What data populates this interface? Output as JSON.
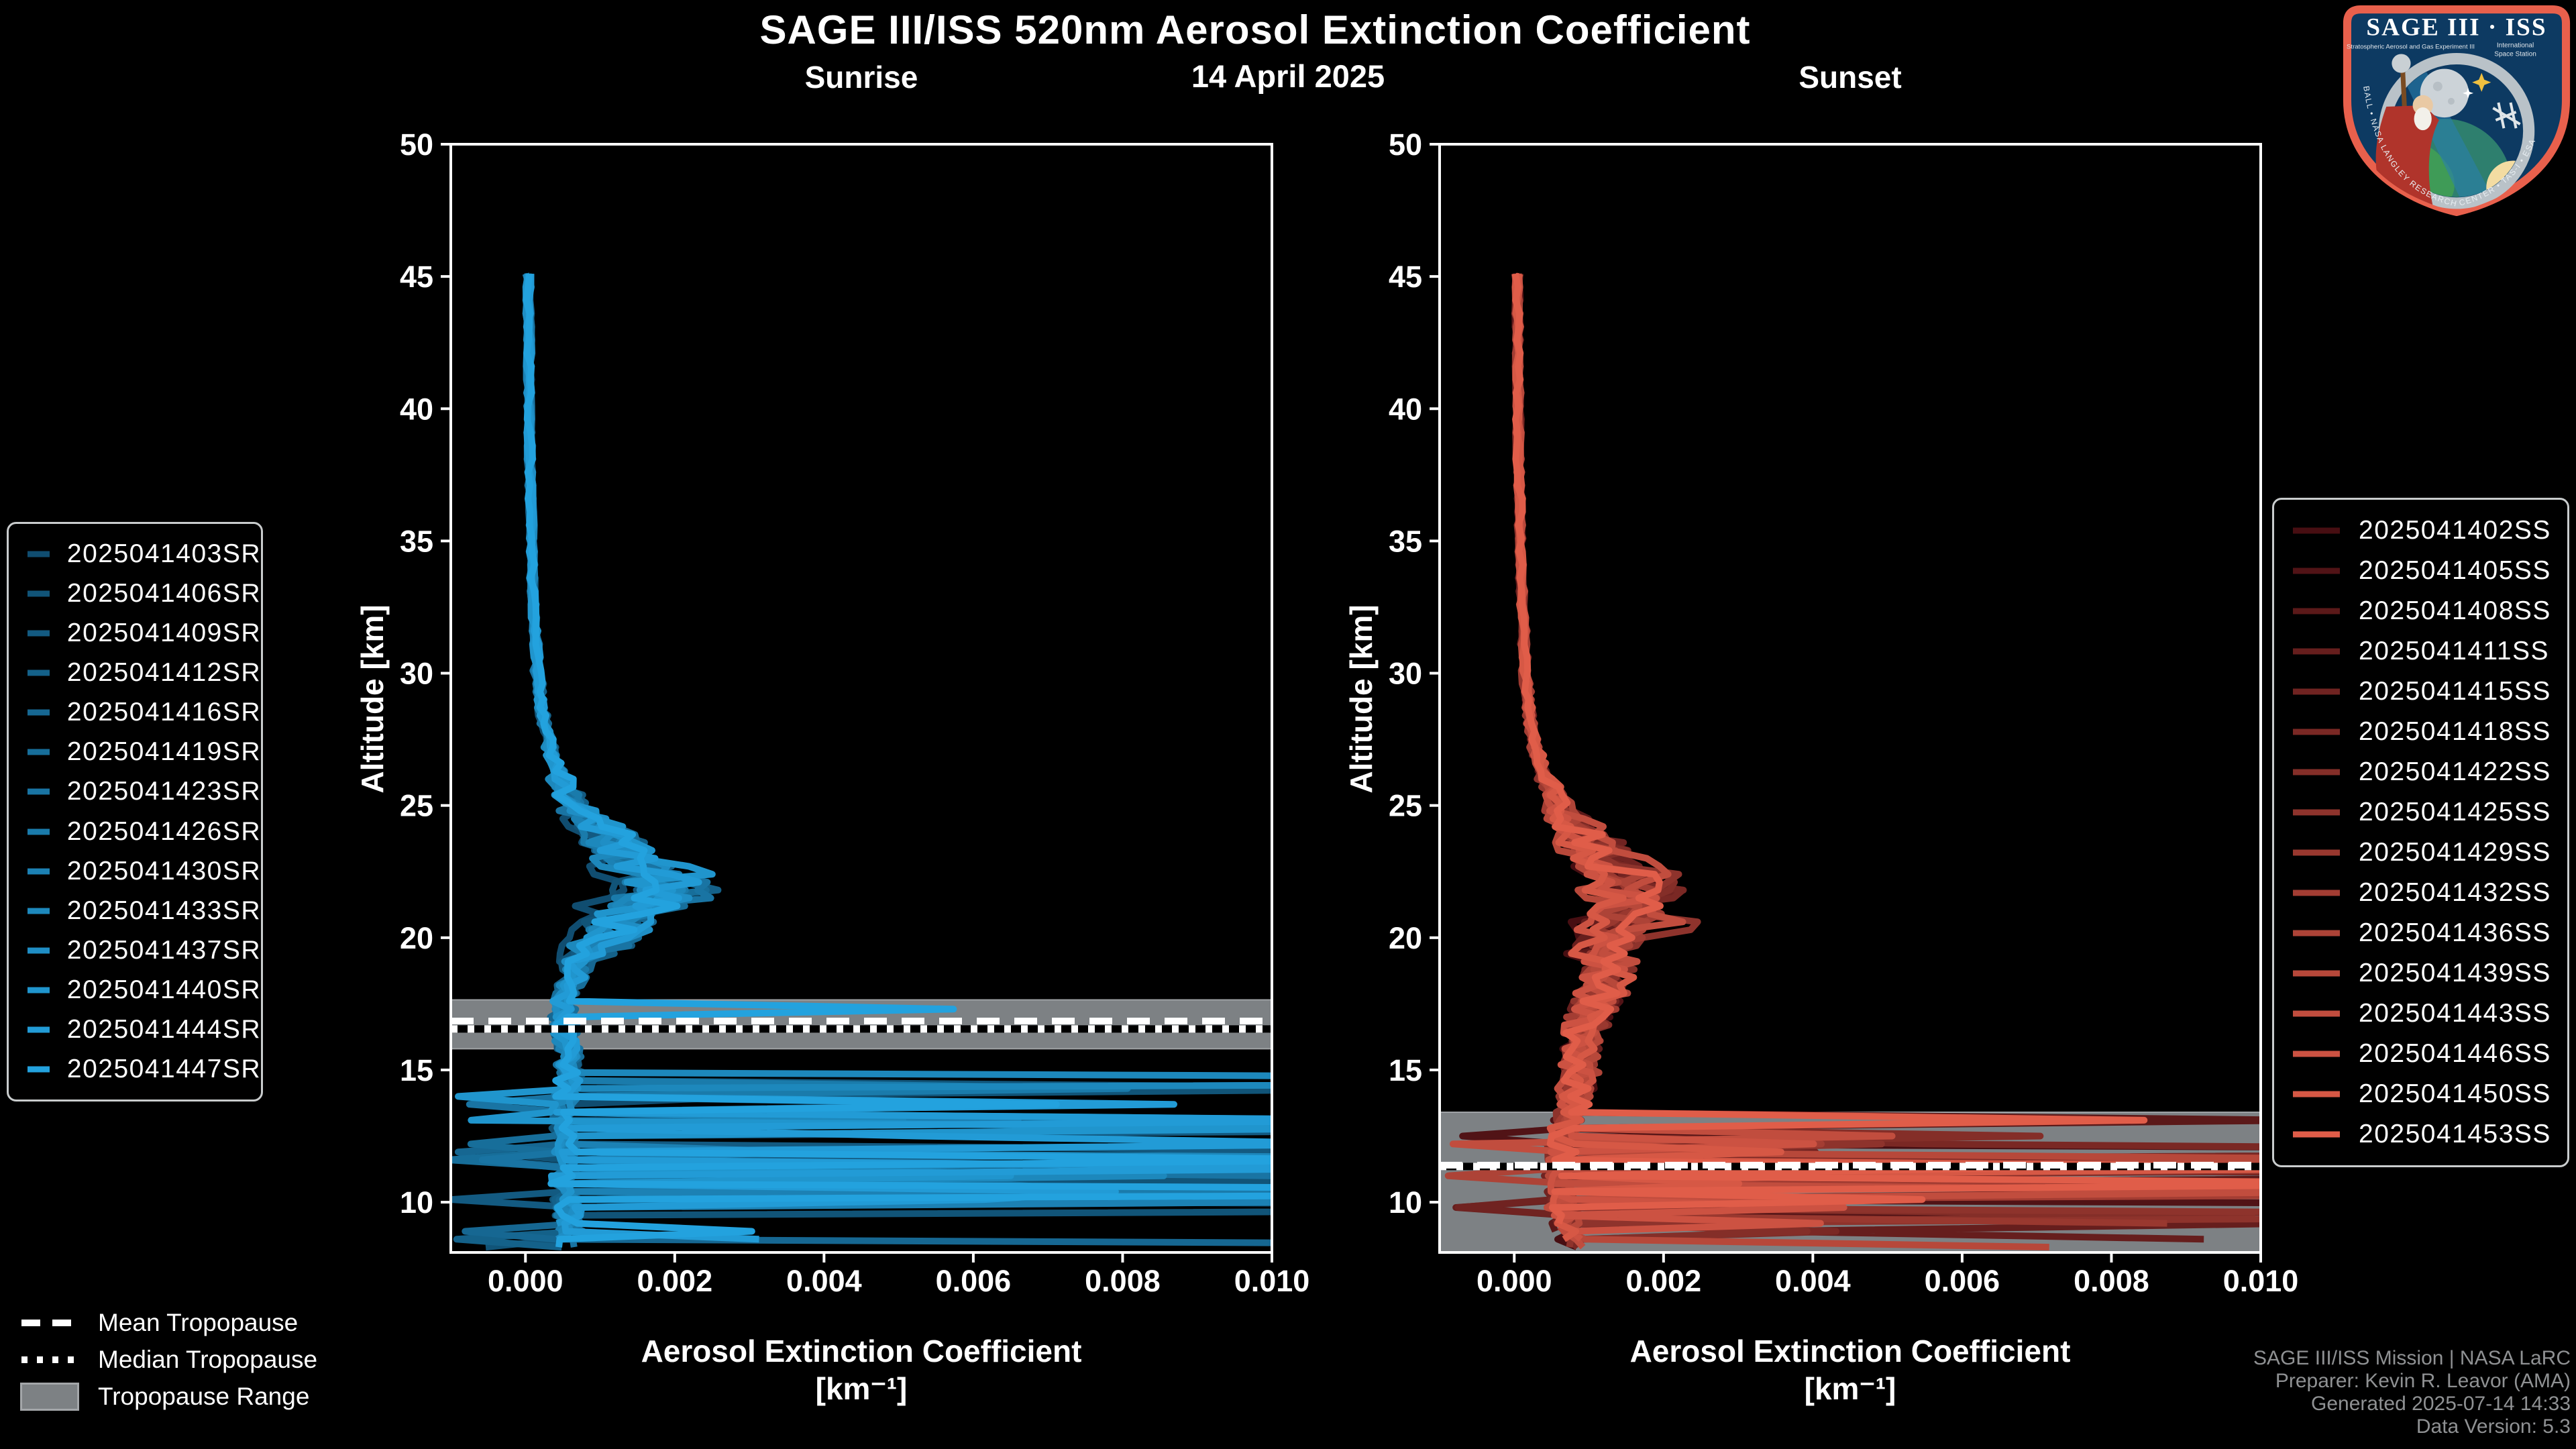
{
  "header": {
    "title": "SAGE III/ISS 520nm Aerosol Extinction Coefficient",
    "date": "14 April 2025"
  },
  "logo": {
    "name": "SAGE III · ISS",
    "sub_left": "Stratospheric Aerosol and Gas Experiment III",
    "sub_right1": "International",
    "sub_right2": "Space Station",
    "ring_text": "BALL • NASA LANGLEY RESEARCH CENTER • TAS-I • ESA",
    "border_color": "#e8604c",
    "field_color": "#0d3a62"
  },
  "tropopause_legend": {
    "mean_label": "Mean Tropopause",
    "median_label": "Median Tropopause",
    "range_label": "Tropopause Range",
    "range_color": "#7d8184"
  },
  "footer": {
    "lines": [
      "SAGE III/ISS Mission | NASA LaRC",
      "Preparer: Kevin R. Leavor (AMA)",
      "Generated 2025-07-14 14:33",
      "Data Version: 5.3"
    ]
  },
  "chart_data": {
    "type": "line",
    "title": "SAGE III/ISS 520nm Aerosol Extinction Coefficient",
    "subtitle": "14 April 2025",
    "xlabel": "Aerosol Extinction Coefficient",
    "xlabel_units": "[km⁻¹]",
    "ylabel": "Altitude [km]",
    "xlim": [
      -0.001,
      0.01
    ],
    "ylim": [
      8.1,
      50
    ],
    "xtick_values": [
      0.0,
      0.002,
      0.004,
      0.006,
      0.008,
      0.01
    ],
    "xtick_labels": [
      "0.000",
      "0.002",
      "0.004",
      "0.006",
      "0.008",
      "0.010"
    ],
    "ytick_values": [
      10,
      15,
      20,
      25,
      30,
      35,
      40,
      45,
      50
    ],
    "ytick_labels": [
      "10",
      "15",
      "20",
      "25",
      "30",
      "35",
      "40",
      "45",
      "50"
    ],
    "grid": false,
    "legend_position": "outside",
    "band_color": "#7d8184",
    "panels": [
      {
        "id": "sunrise",
        "title": "Sunrise",
        "color_start": "#104d70",
        "color_end": "#23a2de",
        "series": [
          "2025041403SR",
          "2025041406SR",
          "2025041409SR",
          "2025041412SR",
          "2025041416SR",
          "2025041419SR",
          "2025041423SR",
          "2025041426SR",
          "2025041430SR",
          "2025041433SR",
          "2025041437SR",
          "2025041440SR",
          "2025041444SR",
          "2025041447SR"
        ],
        "tropopause": {
          "mean_km": 16.85,
          "median_km": 16.55,
          "range_km": [
            15.8,
            17.65
          ]
        },
        "cloud_top_km": 14.6,
        "sparse_cloud_top_km": 17.6,
        "base_profile": {
          "altitude_km": [
            45,
            38,
            33,
            30,
            28,
            26.5,
            25.5,
            24.5,
            23.5,
            22.8,
            22.2,
            21.8,
            21.2,
            20.5,
            19.8,
            19,
            18,
            17,
            16,
            15,
            14,
            13,
            12,
            11,
            10,
            9,
            8.1
          ],
          "extinction_per_km": [
            4e-05,
            6e-05,
            0.0001,
            0.00016,
            0.00025,
            0.0004,
            0.00055,
            0.0008,
            0.0011,
            0.0014,
            0.0017,
            0.0016,
            0.0013,
            0.001,
            0.0008,
            0.00065,
            0.00055,
            0.0005,
            0.00055,
            0.0006,
            0.00055,
            0.0005,
            0.00055,
            0.0005,
            0.00055,
            0.0006,
            0.0005
          ]
        }
      },
      {
        "id": "sunset",
        "title": "Sunset",
        "color_start": "#470e12",
        "color_end": "#e05d49",
        "series": [
          "2025041402SS",
          "2025041405SS",
          "2025041408SS",
          "2025041411SS",
          "2025041415SS",
          "2025041418SS",
          "2025041422SS",
          "2025041425SS",
          "2025041429SS",
          "2025041432SS",
          "2025041436SS",
          "2025041439SS",
          "2025041443SS",
          "2025041446SS",
          "2025041450SS",
          "2025041453SS"
        ],
        "tropopause": {
          "mean_km": 11.4,
          "median_km": 11.35,
          "range_km": [
            8.1,
            13.4
          ]
        },
        "cloud_top_km": 13.4,
        "sparse_cloud_top_km": 13.4,
        "base_profile": {
          "altitude_km": [
            45,
            38,
            33,
            30,
            28,
            26.5,
            25.5,
            24.5,
            23.5,
            22.5,
            21.7,
            21,
            20.3,
            19.5,
            18.7,
            18,
            17,
            16,
            15,
            14,
            13,
            12,
            11,
            10,
            9,
            8.1
          ],
          "extinction_per_km": [
            4e-05,
            6e-05,
            0.0001,
            0.00015,
            0.00022,
            0.00035,
            0.0005,
            0.0007,
            0.001,
            0.0014,
            0.0018,
            0.0016,
            0.0014,
            0.0013,
            0.0013,
            0.0012,
            0.001,
            0.0009,
            0.00085,
            0.0008,
            0.0007,
            0.00065,
            0.0006,
            0.00065,
            0.0007,
            0.00075
          ]
        }
      }
    ]
  }
}
